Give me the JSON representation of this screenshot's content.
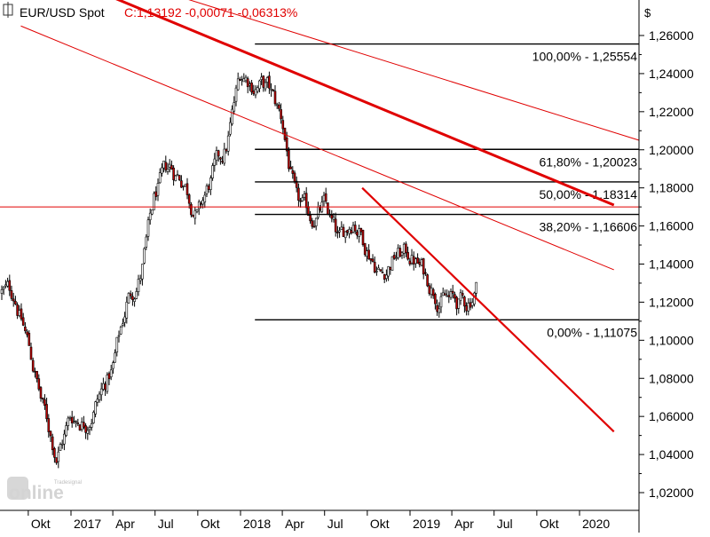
{
  "header": {
    "symbol": "EUR/USD Spot",
    "quote": "C:1,13192 -0,00071 -0,06313%"
  },
  "axis": {
    "currency": "$",
    "y_ticks": [
      "1,26000",
      "1,24000",
      "1,22000",
      "1,20000",
      "1,18000",
      "1,16000",
      "1,14000",
      "1,12000",
      "1,10000",
      "1,08000",
      "1,06000",
      "1,04000",
      "1,02000"
    ],
    "x_ticks": [
      "Okt",
      "2017",
      "Apr",
      "Jul",
      "Okt",
      "2018",
      "Apr",
      "Jul",
      "Okt",
      "2019",
      "Apr",
      "Jul",
      "Okt",
      "2020"
    ]
  },
  "colors": {
    "candles": "#000000",
    "down_fill": "#c00000",
    "trendlines": "#e00000",
    "fib": "#000000"
  },
  "watermark": {
    "brand": "Tradesignal",
    "text": "online"
  },
  "chart_data": {
    "type": "candlestick",
    "title": "EUR/USD Spot",
    "ylim": [
      1.01,
      1.27
    ],
    "ylabel": "$",
    "close": [
      [
        "2016-09-01",
        1.125
      ],
      [
        "2016-10-01",
        1.098
      ],
      [
        "2016-11-01",
        1.065
      ],
      [
        "2016-12-01",
        1.04
      ],
      [
        "2017-01-01",
        1.06
      ],
      [
        "2017-02-01",
        1.058
      ],
      [
        "2017-03-01",
        1.07
      ],
      [
        "2017-04-01",
        1.085
      ],
      [
        "2017-05-01",
        1.12
      ],
      [
        "2017-06-01",
        1.135
      ],
      [
        "2017-07-01",
        1.175
      ],
      [
        "2017-08-01",
        1.19
      ],
      [
        "2017-09-01",
        1.185
      ],
      [
        "2017-10-01",
        1.165
      ],
      [
        "2017-11-01",
        1.185
      ],
      [
        "2017-12-01",
        1.2
      ],
      [
        "2018-01-01",
        1.24
      ],
      [
        "2018-02-01",
        1.235
      ],
      [
        "2018-03-01",
        1.232
      ],
      [
        "2018-04-01",
        1.215
      ],
      [
        "2018-05-01",
        1.17
      ],
      [
        "2018-06-01",
        1.165
      ],
      [
        "2018-07-01",
        1.17
      ],
      [
        "2018-08-01",
        1.15
      ],
      [
        "2018-09-01",
        1.165
      ],
      [
        "2018-10-01",
        1.15
      ],
      [
        "2018-11-01",
        1.135
      ],
      [
        "2018-12-01",
        1.145
      ],
      [
        "2019-01-01",
        1.145
      ],
      [
        "2019-02-01",
        1.135
      ],
      [
        "2019-03-01",
        1.125
      ],
      [
        "2019-04-01",
        1.12
      ],
      [
        "2019-05-01",
        1.118
      ],
      [
        "2019-06-01",
        1.132
      ]
    ],
    "fibonacci": [
      {
        "label": "100,00% - 1,25554",
        "value": 1.25554
      },
      {
        "label": "61,80% - 1,20023",
        "value": 1.20023
      },
      {
        "label": "50,00% - 1,18314",
        "value": 1.18314
      },
      {
        "label": "38,20% - 1,16606",
        "value": 1.16606
      },
      {
        "label": "0,00% - 1,11075",
        "value": 1.11075
      }
    ],
    "horizontal_line": 1.17,
    "trendlines": [
      {
        "from": [
          "2016-09-15",
          1.3
        ],
        "to": [
          "2020-03-15",
          1.171
        ]
      },
      {
        "from": [
          "2016-09-15",
          1.265
        ],
        "to": [
          "2020-03-15",
          1.137
        ]
      },
      {
        "from": [
          "2018-09-20",
          1.18
        ],
        "to": [
          "2020-03-15",
          1.052
        ]
      }
    ]
  }
}
